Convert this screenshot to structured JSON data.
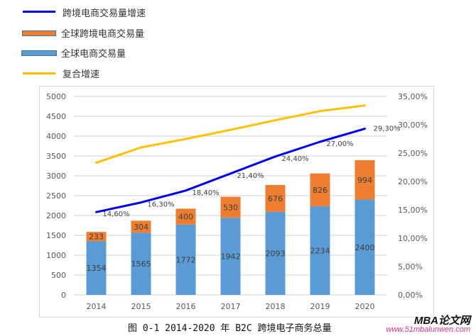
{
  "chart_data": {
    "type": "bar",
    "stacked": true,
    "categories": [
      "2014",
      "2015",
      "2016",
      "2017",
      "2018",
      "2019",
      "2020"
    ],
    "series": [
      {
        "name": "全球电商交易量",
        "type": "bar",
        "axis": "left",
        "color": "#5b9bd5",
        "values": [
          1354,
          1565,
          1772,
          1942,
          2093,
          2234,
          2400
        ]
      },
      {
        "name": "全球跨境电商交易量",
        "type": "bar",
        "axis": "left",
        "color": "#ed7d31",
        "values": [
          233,
          304,
          400,
          530,
          676,
          826,
          994
        ]
      },
      {
        "name": "跨境电商交易量增速",
        "type": "line",
        "axis": "right",
        "color": "#0000ee",
        "values": [
          14.6,
          16.3,
          18.4,
          21.4,
          24.4,
          27.0,
          29.3
        ],
        "labels": [
          "14,60%",
          "16,30%",
          "18,40%",
          "21,40%",
          "24,40%",
          "27,00%",
          "29,30%"
        ]
      },
      {
        "name": "复合增速",
        "type": "line",
        "axis": "right",
        "color": "#ffc000",
        "values": [
          23.3,
          26.0,
          27.5,
          29.1,
          30.8,
          32.4,
          33.4
        ]
      }
    ],
    "ylim": [
      0,
      5000
    ],
    "y_ticks": [
      "0",
      "500",
      "1000",
      "1500",
      "2000",
      "2500",
      "3000",
      "3500",
      "4000",
      "4500",
      "5000"
    ],
    "y2lim": [
      0,
      35
    ],
    "y2_ticks": [
      "0,00%",
      "5,00%",
      "10,00%",
      "15,00%",
      "20,00%",
      "25,00%",
      "30,00%",
      "35,00%"
    ],
    "grid": true,
    "legend_position": "top-left",
    "caption": "图 0-1 2014-2020 年 B2C 跨境电子商务总量"
  },
  "watermark": {
    "brand": "MBA论文网",
    "url": "www.51mbalunwen.com"
  }
}
